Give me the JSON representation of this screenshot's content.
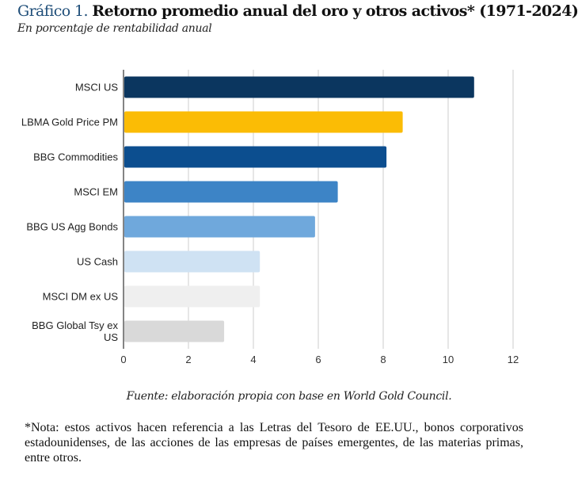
{
  "header": {
    "prefix": "Gráfico 1.",
    "title": "Retorno promedio anual del oro y otros activos* (1971-2024)",
    "subtitle": "En porcentaje de rentabilidad anual"
  },
  "chart_data": {
    "type": "bar",
    "orientation": "horizontal",
    "title": "Retorno promedio anual del oro y otros activos* (1971-2024)",
    "subtitle": "En porcentaje de rentabilidad anual",
    "xlabel": "",
    "ylabel": "",
    "categories": [
      "MSCI US",
      "LBMA Gold Price PM",
      "BBG Commodities",
      "MSCI EM",
      "BBG US Agg Bonds",
      "US Cash",
      "MSCI DM ex US",
      "BBG Global Tsy ex US"
    ],
    "category_lines": [
      [
        "MSCI US"
      ],
      [
        "LBMA Gold Price PM"
      ],
      [
        "BBG Commodities"
      ],
      [
        "MSCI EM"
      ],
      [
        "BBG US Agg Bonds"
      ],
      [
        "US Cash"
      ],
      [
        "MSCI DM ex US"
      ],
      [
        "BBG Global Tsy ex",
        "US"
      ]
    ],
    "values": [
      10.8,
      8.6,
      8.1,
      6.6,
      5.9,
      4.2,
      4.2,
      3.1
    ],
    "colors": [
      "#0b365f",
      "#fbbc05",
      "#0c4e8f",
      "#3d84c6",
      "#6fa8dc",
      "#cfe2f3",
      "#efefef",
      "#d9d9d9"
    ],
    "xlim": [
      0,
      12
    ],
    "xticks": [
      0,
      2,
      4,
      6,
      8,
      10,
      12
    ],
    "grid": true,
    "legend": "none"
  },
  "footer": {
    "source": "Fuente: elaboración propia con base en World Gold Council.",
    "note": "*Nota: estos activos hacen referencia a las Letras del Tesoro de EE.UU., bonos corporativos estadounidenses, de las acciones de las empresas de países emergentes, de las materias primas, entre otros."
  }
}
